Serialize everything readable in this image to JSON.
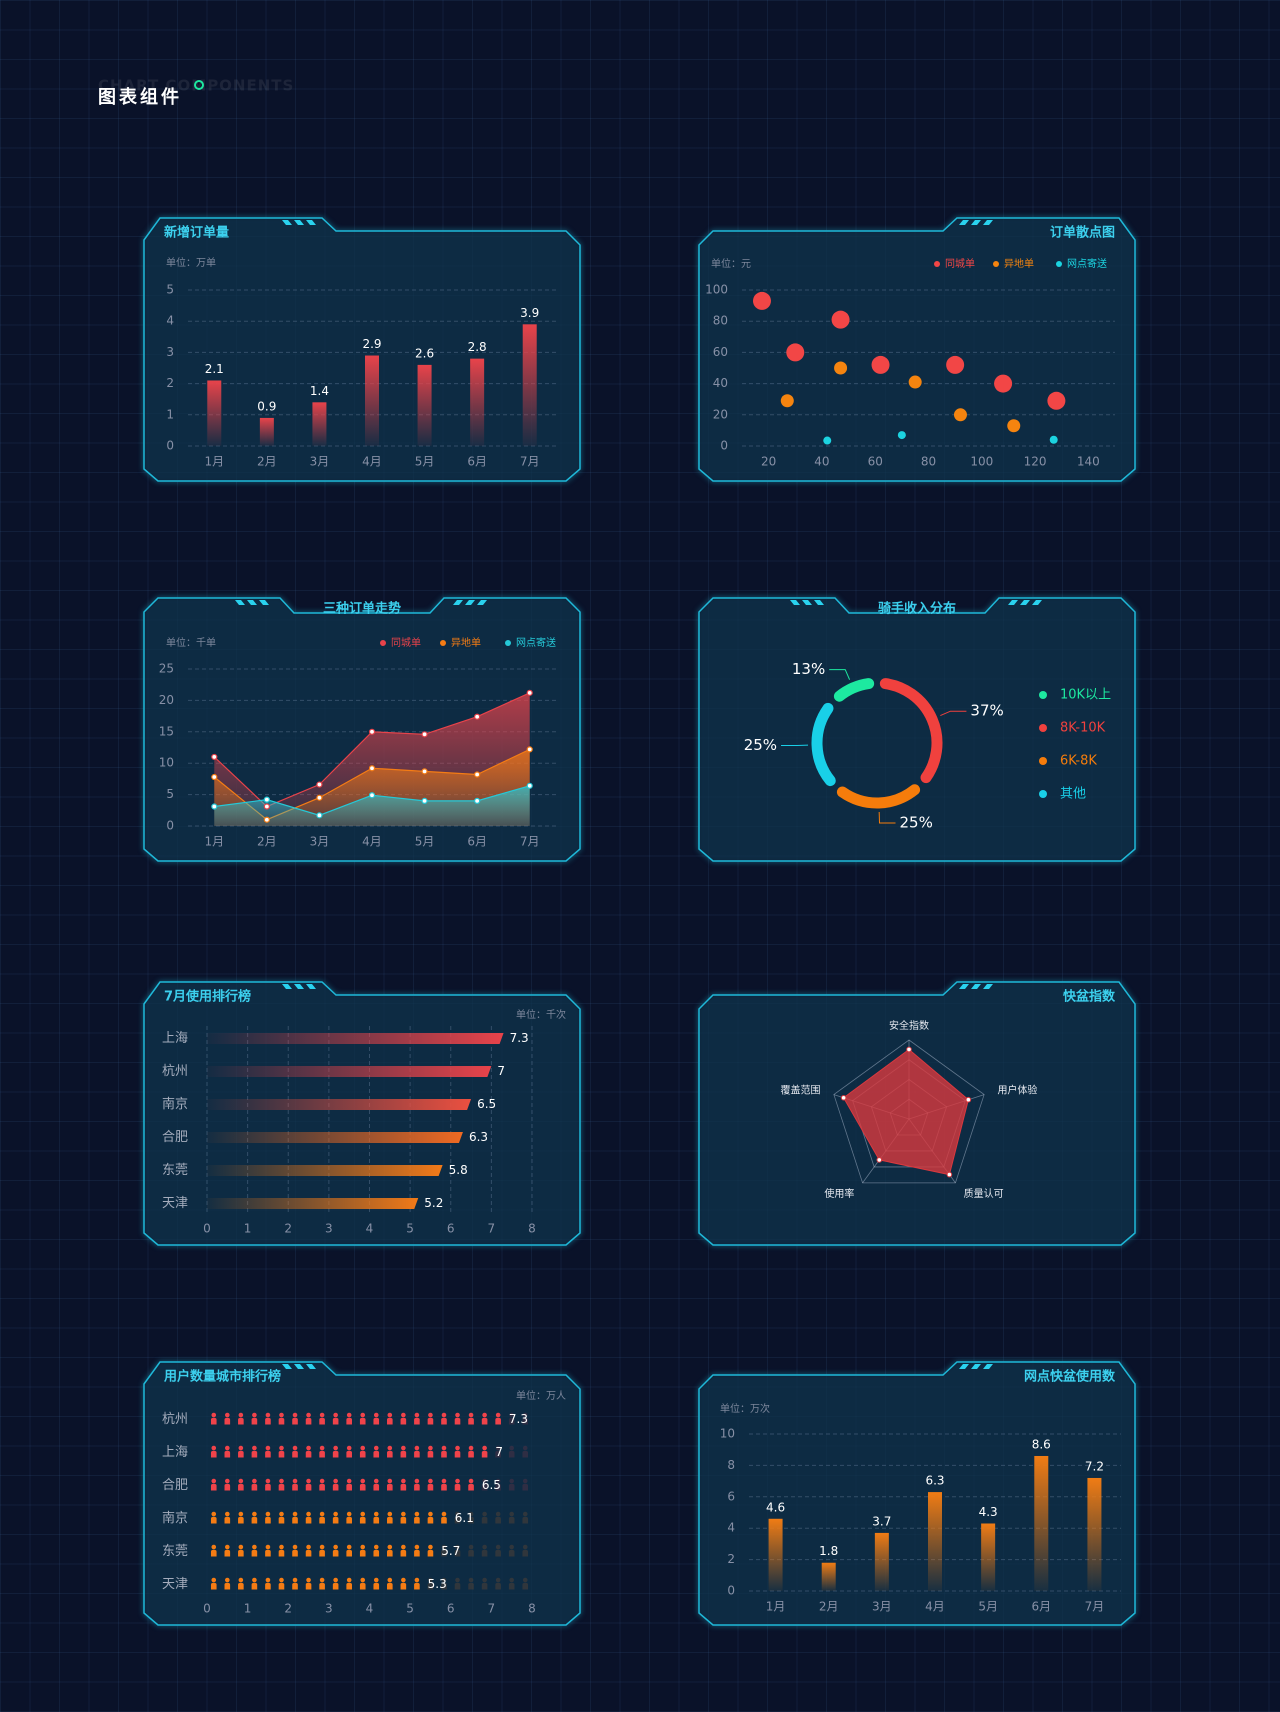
{
  "header": {
    "subtitle": "CHART COMPONENTS",
    "title": "图表组件"
  },
  "chart_data": [
    {
      "type": "bar",
      "title": "新增订单量",
      "unit": "单位：万单",
      "categories": [
        "1月",
        "2月",
        "3月",
        "4月",
        "5月",
        "6月",
        "7月"
      ],
      "values": [
        2.1,
        0.9,
        1.4,
        2.9,
        2.6,
        2.8,
        3.9
      ],
      "color": "#e8434a",
      "ylim": [
        0,
        5
      ],
      "yticks": [
        0,
        1,
        2,
        3,
        4,
        5
      ],
      "grid": true
    },
    {
      "type": "scatter",
      "title": "订单散点图",
      "unit": "单位：元",
      "series": [
        {
          "name": "同城单",
          "color": "#f24646",
          "x": [
            17.5,
            30,
            47,
            62,
            90,
            108,
            128
          ],
          "values": [
            93,
            60,
            81,
            52,
            52,
            40,
            29
          ]
        },
        {
          "name": "异地单",
          "color": "#f5840f",
          "x": [
            27,
            47,
            75,
            92,
            112
          ],
          "values": [
            29,
            50,
            41,
            20,
            13
          ]
        },
        {
          "name": "网点寄送",
          "color": "#1cd3e0",
          "x": [
            42,
            70,
            127
          ],
          "values": [
            3.5,
            7,
            4
          ]
        }
      ],
      "xlim": [
        10,
        150
      ],
      "xticks": [
        20,
        40,
        60,
        80,
        100,
        120,
        140
      ],
      "ylim": [
        0,
        100
      ],
      "yticks": [
        0,
        20,
        40,
        60,
        80,
        100
      ],
      "grid": true
    },
    {
      "type": "area",
      "title": "三种订单走势",
      "unit": "单位：千单",
      "categories": [
        "1月",
        "2月",
        "3月",
        "4月",
        "5月",
        "6月",
        "7月"
      ],
      "series": [
        {
          "name": "同城单",
          "color": "#e8434a",
          "values": [
            11,
            3.1,
            6.6,
            15,
            14.6,
            17.4,
            21.2
          ]
        },
        {
          "name": "异地单",
          "color": "#f57c14",
          "values": [
            7.8,
            1,
            4.5,
            9.2,
            8.7,
            8.2,
            12.2
          ]
        },
        {
          "name": "网点寄送",
          "color": "#25c9d8",
          "values": [
            3.1,
            4.2,
            1.7,
            4.9,
            4,
            4,
            6.4
          ]
        }
      ],
      "ylim": [
        0,
        25
      ],
      "yticks": [
        0,
        5,
        10,
        15,
        20,
        25
      ],
      "grid": true
    },
    {
      "type": "pie",
      "title": "骑手收入分布",
      "categories": [
        "10K以上",
        "8K-10K",
        "6K-8K",
        "其他"
      ],
      "values": [
        13,
        37,
        25,
        25
      ],
      "value_labels": [
        "13%",
        "37%",
        "25%",
        "25%"
      ],
      "colors": [
        "#1de9a0",
        "#f0413e",
        "#f57c0b",
        "#19d0e8"
      ]
    },
    {
      "type": "hbar",
      "title": "7月使用排行榜",
      "unit": "单位：千次",
      "categories": [
        "上海",
        "杭州",
        "南京",
        "合肥",
        "东莞",
        "天津"
      ],
      "values": [
        7.3,
        7,
        6.5,
        6.3,
        5.8,
        5.2
      ],
      "colors": [
        "#e8434a",
        "#e8434a",
        "#ec5040",
        "#f06a22",
        "#f27a18",
        "#f27a18"
      ],
      "xlim": [
        0,
        8
      ],
      "xticks": [
        0,
        1,
        2,
        3,
        4,
        5,
        6,
        7,
        8
      ],
      "grid": true
    },
    {
      "type": "radar",
      "title": "快盆指数",
      "categories": [
        "安全指数",
        "用户体验",
        "质量认可",
        "使用率",
        "覆盖范围"
      ],
      "values": [
        88,
        79,
        87,
        64,
        87
      ],
      "color": "#d9393f",
      "rlim": [
        0,
        100
      ],
      "rticks": [
        25,
        50,
        75,
        100
      ]
    },
    {
      "type": "pictogram",
      "title": "用户数量城市排行榜",
      "unit": "单位：万人",
      "categories": [
        "杭州",
        "上海",
        "合肥",
        "南京",
        "东莞",
        "天津"
      ],
      "values": [
        7.3,
        7,
        6.5,
        6.1,
        5.7,
        5.3
      ],
      "colors": [
        "#f0434a",
        "#f0434a",
        "#f0434a",
        "#f57c14",
        "#f57c14",
        "#f57c14"
      ],
      "xlim": [
        0,
        8
      ],
      "xticks": [
        0,
        1,
        2,
        3,
        4,
        5,
        6,
        7,
        8
      ]
    },
    {
      "type": "bar",
      "title": "网点快盆使用数",
      "unit": "单位：万次",
      "categories": [
        "1月",
        "2月",
        "3月",
        "4月",
        "5月",
        "6月",
        "7月"
      ],
      "values": [
        4.6,
        1.8,
        3.7,
        6.3,
        4.3,
        8.6,
        7.2
      ],
      "color": "#f07c14",
      "ylim": [
        0,
        10
      ],
      "yticks": [
        0,
        2,
        4,
        6,
        8,
        10
      ],
      "grid": true
    }
  ]
}
